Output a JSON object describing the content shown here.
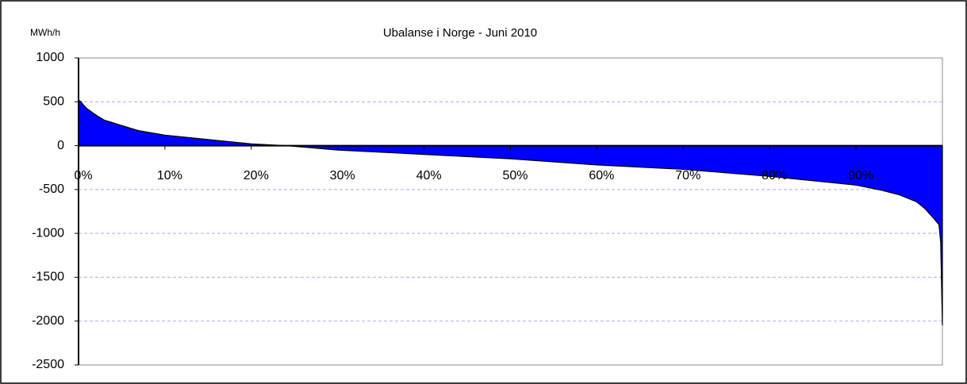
{
  "chart_data": {
    "type": "area",
    "title": "Ubalanse i Norge - Juni 2010",
    "y_label": "MWh/h",
    "x": [
      0,
      0.3,
      0.6,
      1,
      2,
      3,
      4,
      5,
      7,
      10,
      15,
      20,
      24,
      30,
      40,
      50,
      60,
      70,
      80,
      85,
      90,
      93,
      95,
      97,
      98,
      99,
      99.6,
      99.8,
      100
    ],
    "series": [
      {
        "name": "Ubalanse",
        "color": "#0000ff",
        "values": [
          520,
          500,
          460,
          420,
          350,
          290,
          260,
          230,
          170,
          120,
          70,
          20,
          0,
          -50,
          -100,
          -150,
          -220,
          -270,
          -350,
          -400,
          -450,
          -510,
          -560,
          -640,
          -720,
          -830,
          -900,
          -1100,
          -2050
        ]
      }
    ],
    "xlim": [
      0,
      100
    ],
    "xticks": [
      {
        "value": 0,
        "label": "0%"
      },
      {
        "value": 10,
        "label": "10%"
      },
      {
        "value": 20,
        "label": "20%"
      },
      {
        "value": 30,
        "label": "30%"
      },
      {
        "value": 40,
        "label": "40%"
      },
      {
        "value": 50,
        "label": "50%"
      },
      {
        "value": 60,
        "label": "60%"
      },
      {
        "value": 70,
        "label": "70%"
      },
      {
        "value": 80,
        "label": "80%"
      },
      {
        "value": 90,
        "label": "90%"
      }
    ],
    "ylim": [
      -2500,
      1000
    ],
    "yticks": [
      -2500,
      -2000,
      -1500,
      -1000,
      -500,
      0,
      500,
      1000
    ],
    "grid": true
  }
}
